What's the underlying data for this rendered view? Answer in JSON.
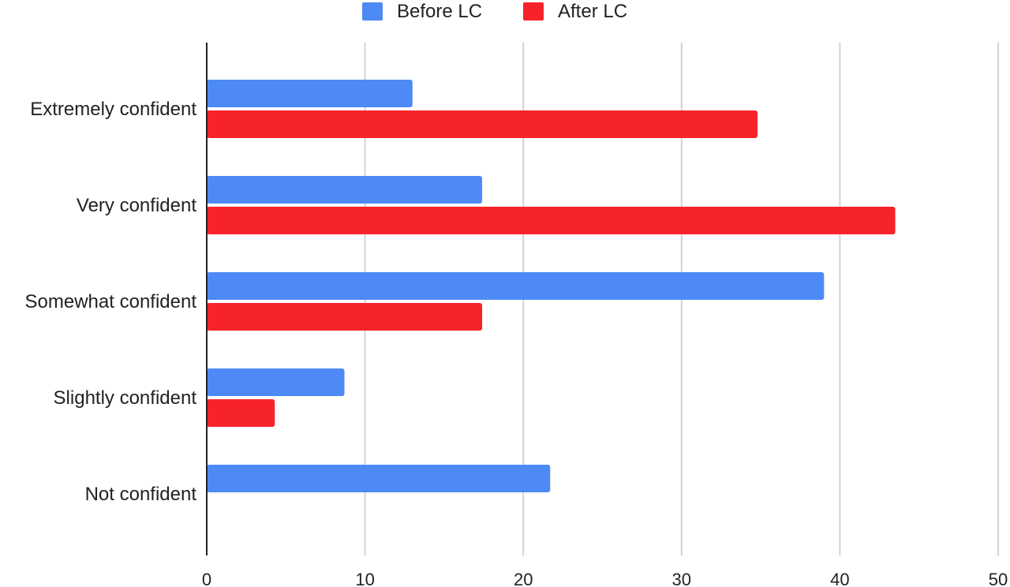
{
  "chart_data": {
    "type": "bar",
    "orientation": "horizontal",
    "categories": [
      "Extremely confident",
      "Very confident",
      "Somewhat confident",
      "Slightly confident",
      "Not confident"
    ],
    "series": [
      {
        "name": "Before LC",
        "color": "#4E8AF6",
        "values": [
          13.0,
          17.4,
          39.0,
          8.7,
          21.7
        ]
      },
      {
        "name": "After LC",
        "color": "#F7232B",
        "values": [
          34.8,
          43.5,
          17.4,
          4.3,
          0
        ]
      }
    ],
    "xlim": [
      0,
      50
    ],
    "xticks": [
      0,
      10,
      20,
      30,
      40,
      50
    ],
    "grid": true,
    "legend_position": "top-center"
  },
  "colors": {
    "grid": "#cfd4d3",
    "axis": "#222222",
    "text": "#222222",
    "background": "#ffffff"
  }
}
